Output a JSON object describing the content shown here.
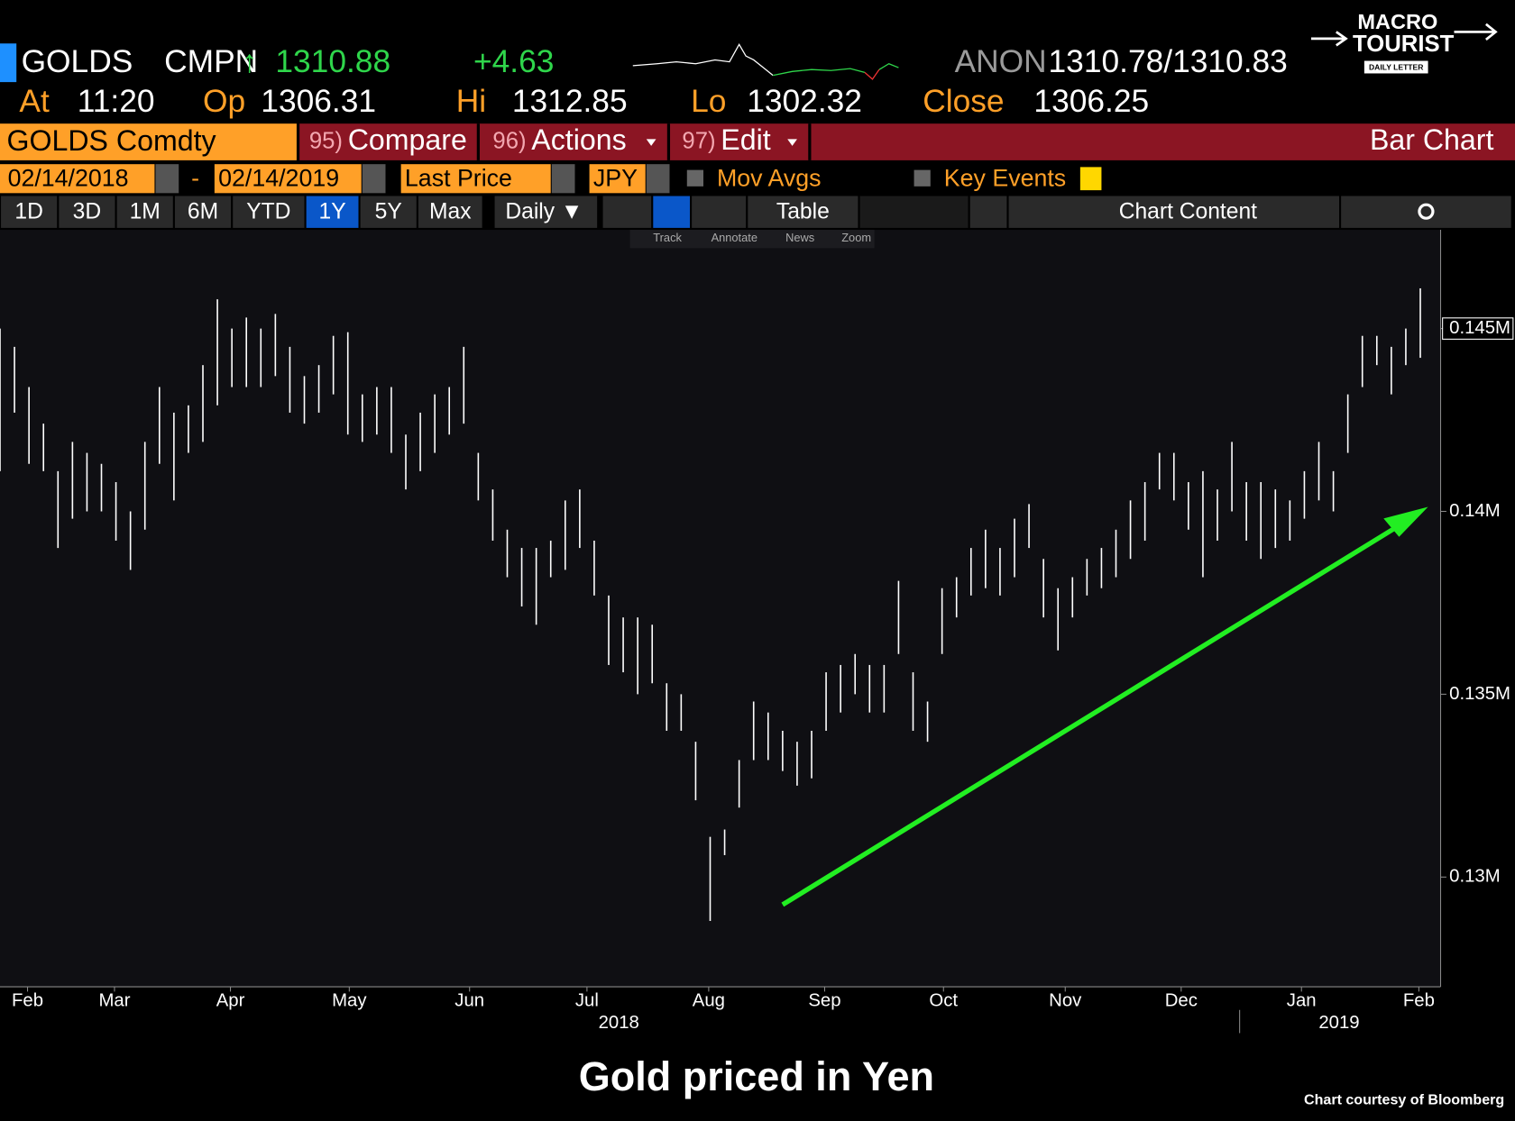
{
  "header": {
    "ticker": "GOLDS",
    "source": "CMPN",
    "arrow": "↑",
    "last": "1310.88",
    "change": "+4.63",
    "quote_source": "ANON",
    "bid_ask": "1310.78/1310.83",
    "at_label": "At",
    "time": "11:20",
    "open_label": "Op",
    "open": "1306.31",
    "high_label": "Hi",
    "high": "1312.85",
    "low_label": "Lo",
    "low": "1302.32",
    "close_label": "Close",
    "close": "1306.25"
  },
  "logo": {
    "line1": "MACRO",
    "line2": "TOURIST",
    "line3": "DAILY LETTER"
  },
  "menu": {
    "security": "GOLDS Comdty",
    "compare_num": "95)",
    "compare": "Compare",
    "actions_num": "96)",
    "actions": "Actions",
    "edit_num": "97)",
    "edit": "Edit",
    "chart_kind": "Bar Chart"
  },
  "settings": {
    "start_date": "02/14/2018",
    "dash": "-",
    "end_date": "02/14/2019",
    "field": "Last Price",
    "currency": "JPY",
    "mov_avgs": "Mov Avgs",
    "key_events": "Key Events"
  },
  "toolbar": {
    "ranges": [
      "1D",
      "3D",
      "1M",
      "6M",
      "YTD",
      "1Y",
      "5Y",
      "Max"
    ],
    "active_range": 5,
    "frequency": "Daily ▼",
    "table": "Table",
    "chart_content": "Chart Content",
    "tools": [
      "Track",
      "Annotate",
      "News",
      "Zoom"
    ]
  },
  "chart_data": {
    "type": "hilo",
    "color": "#ffffff",
    "high": [
      145000,
      144500,
      143400,
      142400,
      141100,
      141900,
      141600,
      141300,
      140800,
      140000,
      141900,
      143400,
      142700,
      142900,
      144000,
      145800,
      145000,
      145300,
      145000,
      145400,
      144500,
      143700,
      144000,
      144800,
      144900,
      143200,
      143400,
      143400,
      142100,
      142700,
      143200,
      143400,
      144500,
      141600,
      140600,
      139500,
      139000,
      139000,
      139200,
      140300,
      140600,
      139200,
      137700,
      137100,
      137100,
      136900,
      135300,
      135000,
      133700,
      131100,
      131300,
      133200,
      134800,
      134500,
      134000,
      133700,
      134000,
      135600,
      135800,
      136100,
      135800,
      135800,
      138100,
      135600,
      134800,
      137900,
      138200,
      139000,
      139500,
      139000,
      139800,
      140200,
      138700,
      137900,
      138200,
      138700,
      139000,
      139500,
      140300,
      140800,
      141600,
      141600,
      140800,
      141100,
      140600,
      141900,
      140800,
      140800,
      140600,
      140300,
      141100,
      141900,
      141100,
      143200,
      144800,
      144800,
      144500,
      145000,
      146100
    ],
    "low": [
      141100,
      142700,
      141300,
      141100,
      139000,
      139800,
      140000,
      140000,
      139200,
      138400,
      139500,
      141300,
      140300,
      141600,
      141900,
      142900,
      143400,
      143400,
      143400,
      143700,
      142700,
      142400,
      142700,
      143200,
      142100,
      141900,
      142100,
      141600,
      140600,
      141100,
      141600,
      142100,
      142400,
      140300,
      139200,
      138200,
      137400,
      136900,
      138200,
      138400,
      139000,
      137700,
      135800,
      135600,
      135000,
      135300,
      134000,
      134000,
      132100,
      128800,
      130600,
      131900,
      133200,
      133200,
      132900,
      132500,
      132700,
      134000,
      134500,
      135000,
      134500,
      134500,
      136100,
      134000,
      133700,
      136100,
      137100,
      137700,
      137900,
      137700,
      138200,
      139000,
      137100,
      136200,
      137100,
      137700,
      137900,
      138200,
      138700,
      139200,
      140600,
      140300,
      139500,
      138200,
      139200,
      140000,
      139200,
      138700,
      139000,
      139200,
      139800,
      140300,
      140000,
      141600,
      143400,
      144000,
      143200,
      144000,
      144200
    ],
    "xlim": [
      0,
      100
    ],
    "xticks": [
      {
        "value": 1.9,
        "label": "Feb"
      },
      {
        "value": 7.9,
        "label": "Mar"
      },
      {
        "value": 15.9,
        "label": "Apr"
      },
      {
        "value": 24.1,
        "label": "May"
      },
      {
        "value": 32.4,
        "label": "Jun"
      },
      {
        "value": 40.5,
        "label": "Jul"
      },
      {
        "value": 48.9,
        "label": "Aug"
      },
      {
        "value": 56.9,
        "label": "Sep"
      },
      {
        "value": 65.1,
        "label": "Oct"
      },
      {
        "value": 73.5,
        "label": "Nov"
      },
      {
        "value": 81.5,
        "label": "Dec"
      },
      {
        "value": 89.8,
        "label": "Jan"
      },
      {
        "value": 97.9,
        "label": "Feb"
      }
    ],
    "year_ticks": [
      {
        "value": 42.7,
        "label": "2018"
      },
      {
        "value": 92.4,
        "label": "2019"
      }
    ],
    "ylim": [
      127000,
      147700
    ],
    "yticks": [
      {
        "value": 130000,
        "label": "0.13M"
      },
      {
        "value": 135000,
        "label": "0.135M"
      },
      {
        "value": 140000,
        "label": "0.14M"
      },
      {
        "value": 145000,
        "label": "0.145M"
      }
    ],
    "last_price": {
      "value": 145000,
      "label": "0.145M"
    }
  },
  "caption": "Gold priced in Yen",
  "credit": "Chart courtesy of Bloomberg"
}
